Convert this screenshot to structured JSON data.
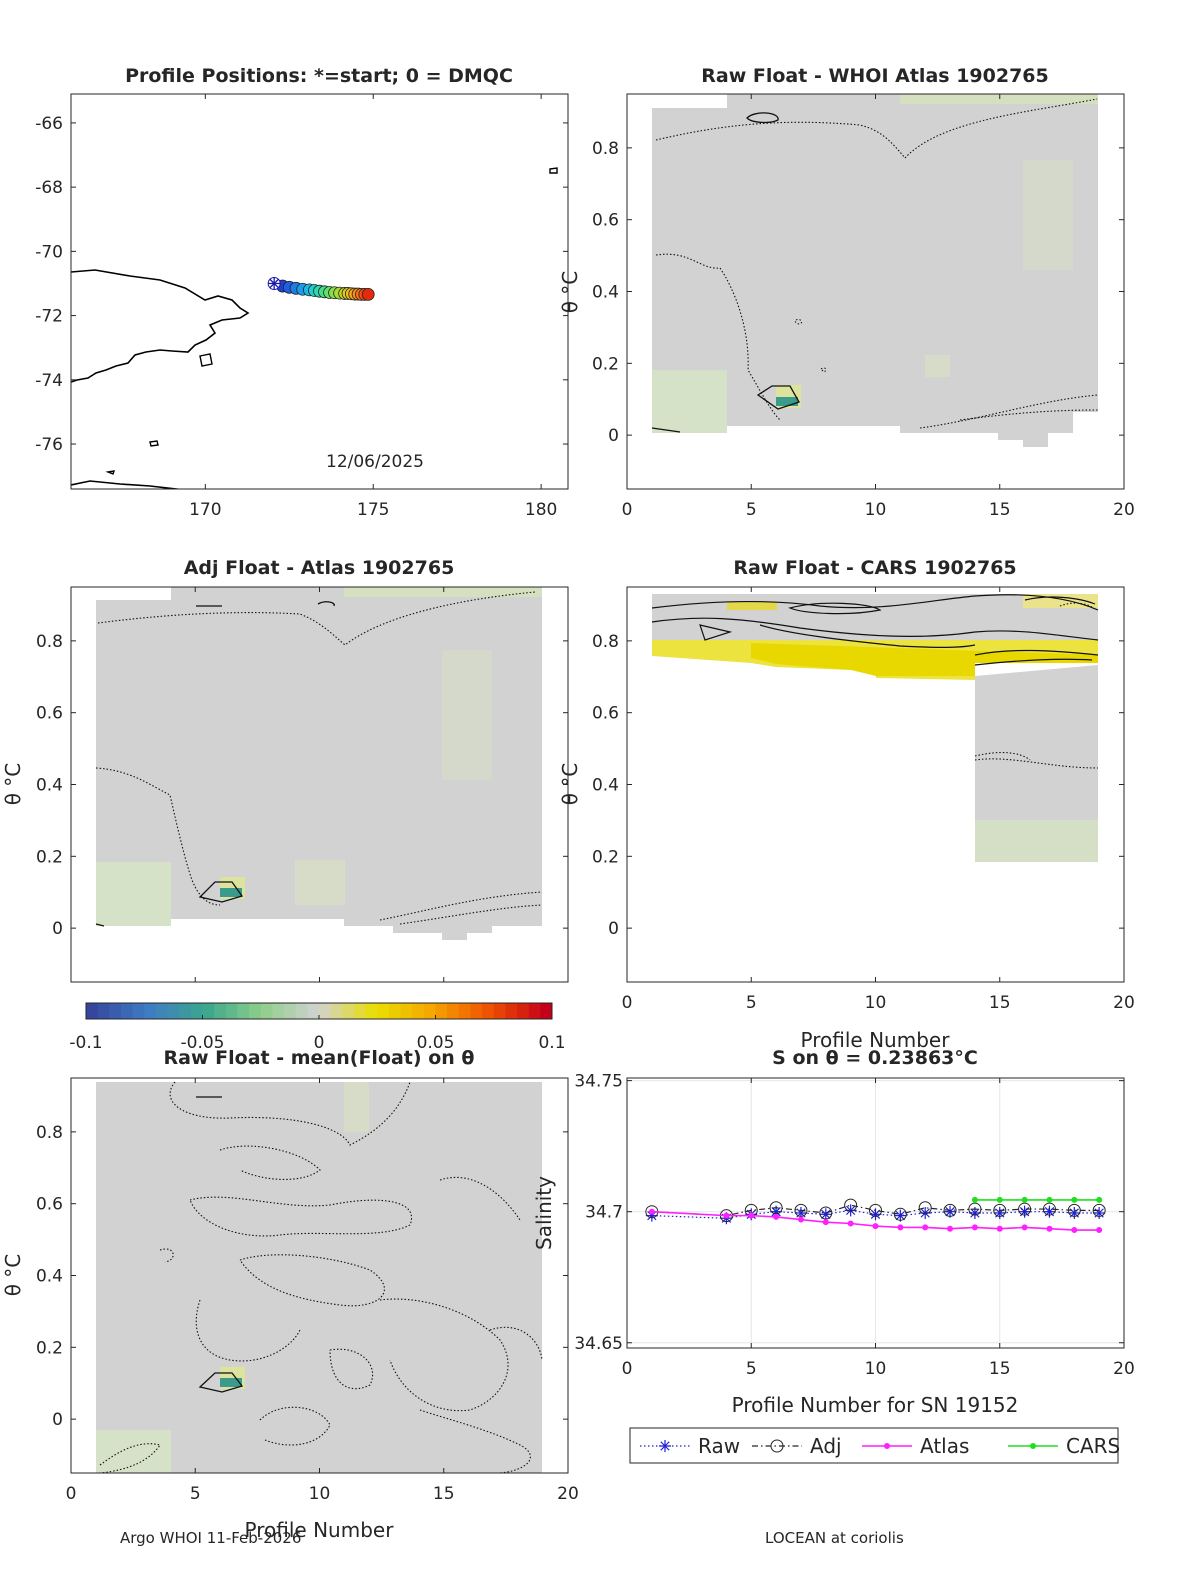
{
  "footer": {
    "left": "Argo WHOI 11-Feb-2026",
    "right": "LOCEAN at coriolis"
  },
  "colorbar": {
    "ticks": [
      "-0.1",
      "-0.05",
      "0",
      "0.05",
      "0.1"
    ],
    "colors": [
      "#35479c",
      "#3f7cc4",
      "#3aa68c",
      "#8fcf8a",
      "#d2d2d2",
      "#e8df00",
      "#f5a500",
      "#ef5000",
      "#c4001a"
    ]
  },
  "chart_data": [
    {
      "type": "scatter",
      "title": "Profile Positions: *=start; 0 = DMQC",
      "annotation": "12/06/2025",
      "xlim": [
        166,
        180.8
      ],
      "ylim": [
        -77.4,
        -65.1
      ],
      "xticks": [
        170,
        175,
        180
      ],
      "yticks": [
        -66,
        -68,
        -70,
        -72,
        -74,
        -76
      ],
      "xticklabels": [
        "170",
        "175",
        "180"
      ],
      "yticklabels": [
        "-66",
        "-68",
        "-70",
        "-72",
        "-74",
        "-76"
      ],
      "start": [
        172.05,
        -71.0
      ],
      "lon": [
        172.3,
        172.5,
        172.7,
        172.9,
        173.1,
        173.25,
        173.4,
        173.55,
        173.7,
        173.85,
        174.0,
        174.15,
        174.25,
        174.35,
        174.45,
        174.55,
        174.65,
        174.75,
        174.85
      ],
      "lat": [
        -71.08,
        -71.12,
        -71.15,
        -71.18,
        -71.2,
        -71.22,
        -71.24,
        -71.26,
        -71.28,
        -71.29,
        -71.3,
        -71.31,
        -71.31,
        -71.32,
        -71.33,
        -71.33,
        -71.34,
        -71.34,
        -71.34
      ],
      "marker_colors": [
        "#1f3fd9",
        "#1f5fe0",
        "#1e7ee6",
        "#1c9ce8",
        "#1bb9e4",
        "#22cfcf",
        "#2fd9b0",
        "#45dd8c",
        "#64df6a",
        "#86df4d",
        "#a5dc36",
        "#c3d627",
        "#dccc1f",
        "#efbd1c",
        "#f9a81a",
        "#fc8e17",
        "#f97014",
        "#f04f11",
        "#e32a0e"
      ]
    },
    {
      "type": "heatmap",
      "title": "Raw Float - WHOI Atlas  1902765",
      "xlim": [
        0,
        20
      ],
      "ylim": [
        -0.15,
        0.95
      ],
      "xticks": [
        0,
        5,
        10,
        15,
        20
      ],
      "yticks": [
        0,
        0.2,
        0.4,
        0.6,
        0.8
      ],
      "xticklabels": [
        "0",
        "5",
        "10",
        "15",
        "20"
      ],
      "yticklabels": [
        "0",
        "0.2",
        "0.4",
        "0.6",
        "0.8"
      ],
      "ylabel": "θ °C"
    },
    {
      "type": "heatmap",
      "title": "Adj Float - Atlas  1902765",
      "xlim": [
        0,
        20
      ],
      "ylim": [
        -0.15,
        0.95
      ],
      "xticks": [
        0,
        5,
        10,
        15,
        20
      ],
      "yticks": [
        0,
        0.2,
        0.4,
        0.6,
        0.8
      ],
      "yticklabels": [
        "0",
        "0.2",
        "0.4",
        "0.6",
        "0.8"
      ],
      "ylabel": "θ °C"
    },
    {
      "type": "heatmap",
      "title": "Raw Float - CARS  1902765",
      "xlim": [
        0,
        20
      ],
      "ylim": [
        -0.15,
        0.95
      ],
      "xticks": [
        0,
        5,
        10,
        15,
        20
      ],
      "yticks": [
        0,
        0.2,
        0.4,
        0.6,
        0.8
      ],
      "xticklabels": [
        "0",
        "5",
        "10",
        "15",
        "20"
      ],
      "yticklabels": [
        "0",
        "0.2",
        "0.4",
        "0.6",
        "0.8"
      ],
      "xlabel": "Profile Number",
      "ylabel": "θ °C"
    },
    {
      "type": "heatmap",
      "title": "Raw Float - mean(Float) on θ",
      "xlim": [
        0,
        20
      ],
      "ylim": [
        -0.15,
        0.95
      ],
      "xticks": [
        0,
        5,
        10,
        15,
        20
      ],
      "yticks": [
        0,
        0.2,
        0.4,
        0.6,
        0.8
      ],
      "xticklabels": [
        "0",
        "5",
        "10",
        "15",
        "20"
      ],
      "yticklabels": [
        "0",
        "0.2",
        "0.4",
        "0.6",
        "0.8"
      ],
      "xlabel": "Profile Number",
      "ylabel": "θ °C"
    },
    {
      "type": "line",
      "title": "S on θ = 0.23863°C",
      "xlabel": "Profile Number for SN 19152",
      "ylabel": "Salinity",
      "xlim": [
        0,
        20
      ],
      "ylim": [
        34.648,
        34.751
      ],
      "xticks": [
        0,
        5,
        10,
        15,
        20
      ],
      "yticks": [
        34.65,
        34.7,
        34.75
      ],
      "xticklabels": [
        "0",
        "5",
        "10",
        "15",
        "20"
      ],
      "yticklabels": [
        "34.65",
        "34.7",
        "34.75"
      ],
      "grid": true,
      "legend": "bottom-outside",
      "series": [
        {
          "name": "Raw",
          "color": "#1f1fd6",
          "x": [
            1,
            4,
            5,
            6,
            7,
            8,
            9,
            10,
            11,
            12,
            13,
            14,
            15,
            16,
            17,
            18,
            19
          ],
          "y": [
            34.6985,
            34.6975,
            34.699,
            34.7,
            34.6995,
            34.699,
            34.7005,
            34.699,
            34.6985,
            34.6995,
            34.7,
            34.6995,
            34.6995,
            34.7,
            34.7,
            34.6995,
            34.6995
          ]
        },
        {
          "name": "Adj",
          "color": "#262626",
          "x": [
            1,
            4,
            5,
            6,
            7,
            8,
            9,
            10,
            11,
            12,
            13,
            14,
            15,
            16,
            17,
            18,
            19
          ],
          "y": [
            34.7,
            34.6985,
            34.7005,
            34.7015,
            34.7005,
            34.6995,
            34.7025,
            34.7005,
            34.699,
            34.7015,
            34.7005,
            34.701,
            34.7005,
            34.701,
            34.701,
            34.7005,
            34.7005
          ]
        },
        {
          "name": "Atlas",
          "color": "#ff1fff",
          "x": [
            1,
            4,
            5,
            6,
            7,
            8,
            9,
            10,
            11,
            12,
            13,
            14,
            15,
            16,
            17,
            18,
            19
          ],
          "y": [
            34.7,
            34.6985,
            34.6985,
            34.698,
            34.697,
            34.696,
            34.6955,
            34.6945,
            34.694,
            34.694,
            34.6935,
            34.694,
            34.6935,
            34.694,
            34.6935,
            34.693,
            34.693
          ]
        },
        {
          "name": "CARS",
          "color": "#1fdf1f",
          "x": [
            14,
            15,
            16,
            17,
            18,
            19
          ],
          "y": [
            34.7045,
            34.7045,
            34.7045,
            34.7045,
            34.7045,
            34.7045
          ]
        }
      ]
    }
  ]
}
